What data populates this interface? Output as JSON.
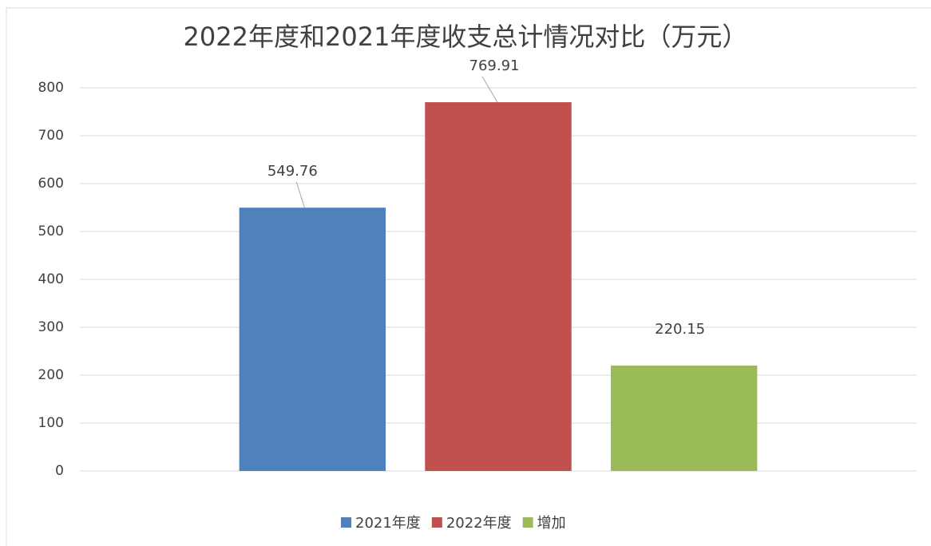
{
  "chart_data": {
    "type": "bar",
    "title": "2022年度和2021年度收支总计情况对比（万元）",
    "categories": [
      null
    ],
    "series": [
      {
        "name": "2021年度",
        "color": "#4f81bd",
        "values": [
          549.76
        ]
      },
      {
        "name": "2022年度",
        "color": "#c0504d",
        "values": [
          769.91
        ]
      },
      {
        "name": "增加",
        "color": "#9bbb59",
        "values": [
          220.15
        ]
      }
    ],
    "ylim": [
      0,
      800
    ],
    "yticks": [
      0,
      100,
      200,
      300,
      400,
      500,
      600,
      700,
      800
    ],
    "grid": true,
    "legend": "bottom"
  }
}
